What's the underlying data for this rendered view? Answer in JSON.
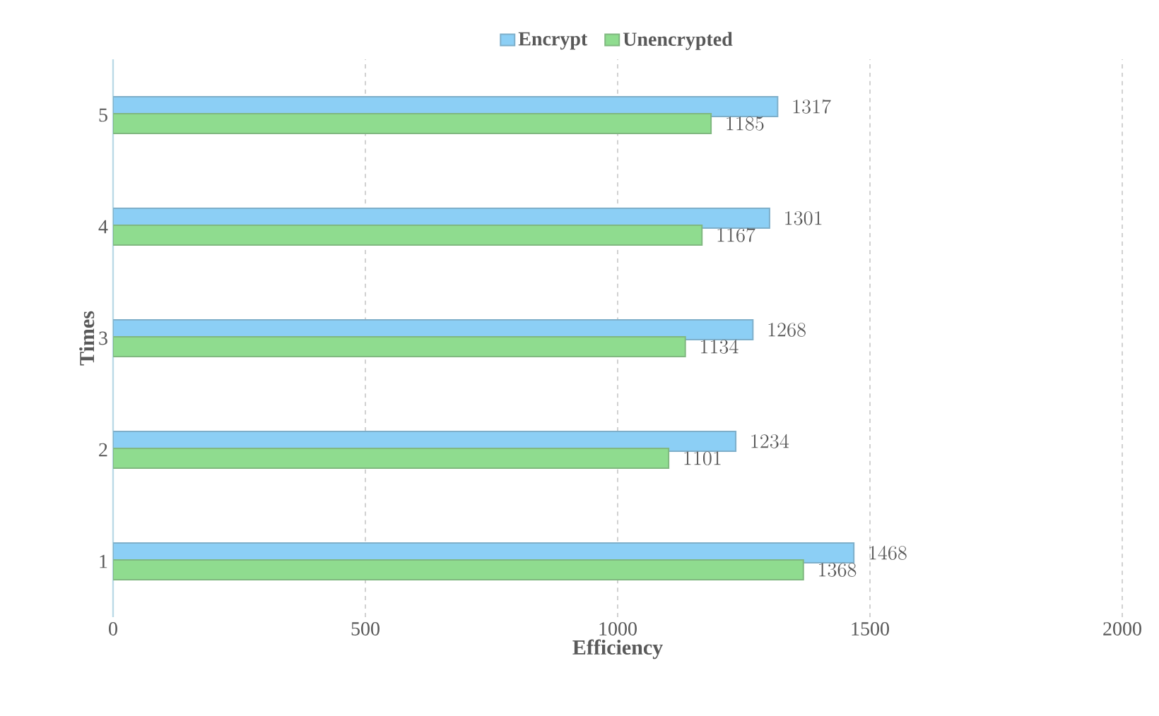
{
  "chart_data": {
    "type": "bar",
    "orientation": "horizontal",
    "xlabel": "Efficiency",
    "ylabel": "Times",
    "categories": [
      "5",
      "4",
      "3",
      "2",
      "1"
    ],
    "series": [
      {
        "name": "Encrypt",
        "color": "#8ccff5",
        "values": [
          1317,
          1301,
          1268,
          1234,
          1468
        ]
      },
      {
        "name": "Unencrypted",
        "color": "#8fdc8f",
        "values": [
          1185,
          1167,
          1134,
          1101,
          1368
        ]
      }
    ],
    "xlim": [
      0,
      2000
    ],
    "xticks": [
      0,
      500,
      1000,
      1500,
      2000
    ],
    "grid": "x",
    "legend": "top",
    "data_labels": true
  }
}
